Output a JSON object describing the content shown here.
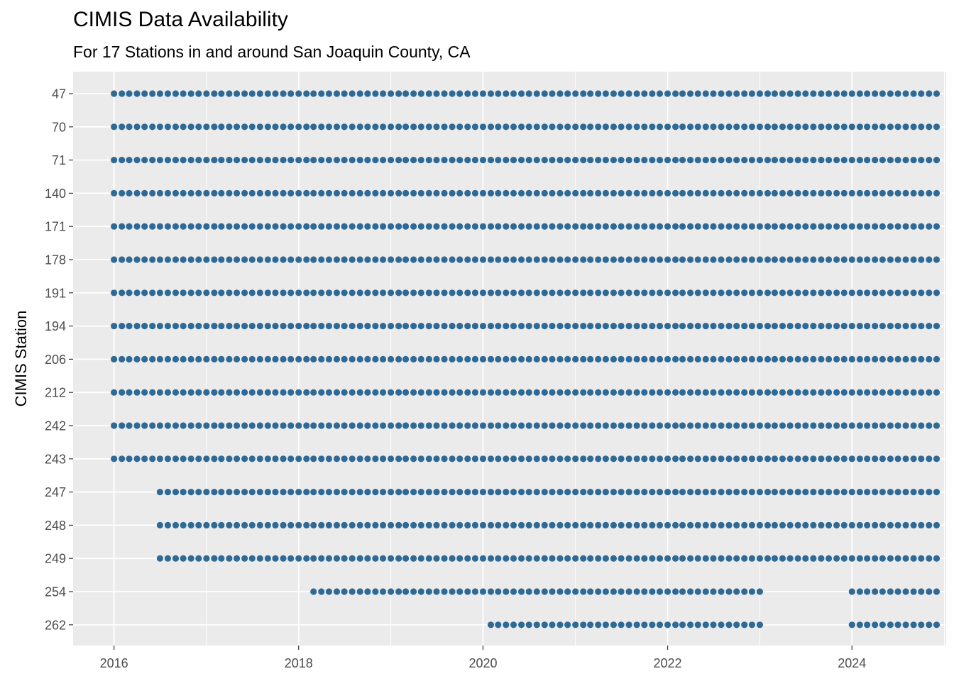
{
  "chart_data": {
    "type": "scatter",
    "title": "CIMIS Data Availability",
    "subtitle": "For 17 Stations in and around San Joaquin County, CA",
    "xlabel": "",
    "ylabel": "CIMIS Station",
    "x_axis_kind": "date",
    "x_ticks": [
      "2016",
      "2018",
      "2020",
      "2022",
      "2024"
    ],
    "xlim": [
      "2015-07-23",
      "2025-01-08"
    ],
    "point_interval": "monthly",
    "grid": true,
    "legend": "none",
    "point_color": "#2f6996",
    "panel_color": "#ebebeb",
    "stations": [
      "47",
      "70",
      "71",
      "140",
      "171",
      "178",
      "191",
      "194",
      "206",
      "212",
      "242",
      "243",
      "247",
      "248",
      "249",
      "254",
      "262"
    ],
    "series": [
      {
        "station": "47",
        "ranges": [
          [
            "2016-01",
            "2024-12"
          ]
        ]
      },
      {
        "station": "70",
        "ranges": [
          [
            "2016-01",
            "2024-12"
          ]
        ]
      },
      {
        "station": "71",
        "ranges": [
          [
            "2016-01",
            "2024-12"
          ]
        ]
      },
      {
        "station": "140",
        "ranges": [
          [
            "2016-01",
            "2024-12"
          ]
        ]
      },
      {
        "station": "171",
        "ranges": [
          [
            "2016-01",
            "2024-12"
          ]
        ]
      },
      {
        "station": "178",
        "ranges": [
          [
            "2016-01",
            "2024-12"
          ]
        ]
      },
      {
        "station": "191",
        "ranges": [
          [
            "2016-01",
            "2024-12"
          ]
        ]
      },
      {
        "station": "194",
        "ranges": [
          [
            "2016-01",
            "2024-12"
          ]
        ]
      },
      {
        "station": "206",
        "ranges": [
          [
            "2016-01",
            "2024-12"
          ]
        ]
      },
      {
        "station": "212",
        "ranges": [
          [
            "2016-01",
            "2024-12"
          ]
        ]
      },
      {
        "station": "242",
        "ranges": [
          [
            "2016-01",
            "2024-12"
          ]
        ]
      },
      {
        "station": "243",
        "ranges": [
          [
            "2016-01",
            "2024-12"
          ]
        ]
      },
      {
        "station": "247",
        "ranges": [
          [
            "2016-07",
            "2024-12"
          ]
        ]
      },
      {
        "station": "248",
        "ranges": [
          [
            "2016-07",
            "2024-12"
          ]
        ]
      },
      {
        "station": "249",
        "ranges": [
          [
            "2016-07",
            "2024-12"
          ]
        ]
      },
      {
        "station": "254",
        "ranges": [
          [
            "2018-03",
            "2023-01"
          ],
          [
            "2024-01",
            "2024-12"
          ]
        ]
      },
      {
        "station": "262",
        "ranges": [
          [
            "2020-02",
            "2023-01"
          ],
          [
            "2024-01",
            "2024-12"
          ]
        ]
      }
    ]
  }
}
